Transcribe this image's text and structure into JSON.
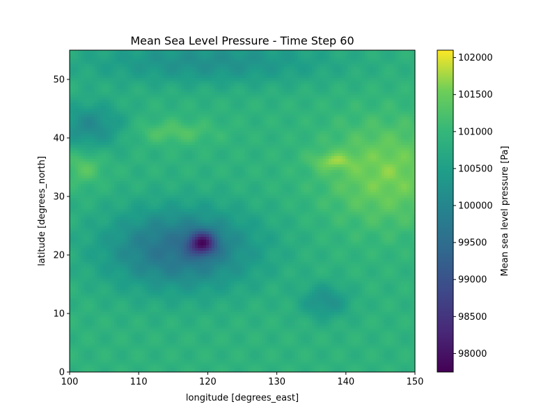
{
  "chart_data": {
    "type": "heatmap",
    "title": "Mean Sea Level Pressure - Time Step 60",
    "xlabel": "longitude [degrees_east]",
    "ylabel": "latitude [degrees_north]",
    "xlim": [
      100,
      150
    ],
    "ylim": [
      0,
      55
    ],
    "x_ticks": [
      100,
      110,
      120,
      130,
      140,
      150
    ],
    "y_ticks": [
      0,
      10,
      20,
      30,
      40,
      50
    ],
    "colorbar": {
      "label": "Mean sea level pressure [Pa]",
      "colormap": "viridis",
      "range": [
        97750,
        102100
      ],
      "ticks": [
        98000,
        98500,
        99000,
        99500,
        100000,
        100500,
        101000,
        101500,
        102000
      ]
    },
    "grid": false,
    "features": [
      {
        "kind": "low",
        "lon": 119.2,
        "lat": 22.0,
        "min_pa": 97800
      },
      {
        "kind": "low",
        "lon": 137.0,
        "lat": 12.0,
        "min_pa": 100300
      },
      {
        "kind": "high",
        "lon": 145.0,
        "lat": 35.0,
        "max_pa": 101700
      },
      {
        "kind": "high",
        "lon": 138.0,
        "lat": 36.0,
        "max_pa": 101900
      }
    ]
  }
}
